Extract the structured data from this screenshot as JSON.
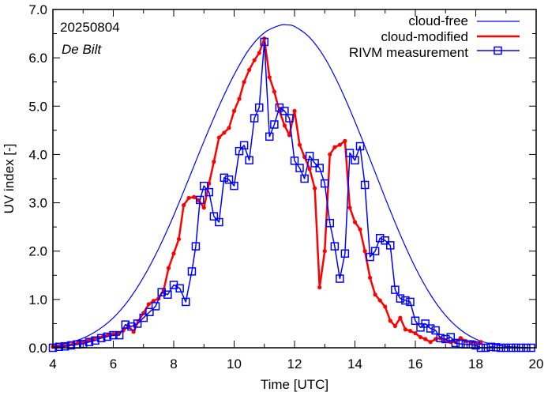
{
  "chart_data": {
    "type": "line",
    "annotations": {
      "date": "20250804",
      "station": "De Bilt"
    },
    "xlabel": "Time  [UTC]",
    "ylabel": "UV index  [-]",
    "xlim": [
      4,
      20
    ],
    "ylim": [
      0,
      7
    ],
    "x_ticks": [
      4,
      6,
      8,
      10,
      12,
      14,
      16,
      18,
      20
    ],
    "x_tick_labels": [
      "4",
      "6",
      "8",
      "10",
      "12",
      "14",
      "16",
      "18",
      "20"
    ],
    "y_ticks": [
      0,
      1,
      2,
      3,
      4,
      5,
      6,
      7
    ],
    "y_tick_labels": [
      "0.0",
      "1.0",
      "2.0",
      "3.0",
      "4.0",
      "5.0",
      "6.0",
      "7.0"
    ],
    "grid": false,
    "legend_position": "top-right",
    "colors": {
      "blue": "#0000ff",
      "red": "#ff0000"
    },
    "series": [
      {
        "name": "cloud-free",
        "style": "line",
        "color": "#0000ff",
        "peak_time": 11.75,
        "peak_value": 6.68,
        "x": [
          4.0,
          4.5,
          5.0,
          5.5,
          6.0,
          6.5,
          7.0,
          7.5,
          8.0,
          8.5,
          9.0,
          9.5,
          10.0,
          10.5,
          11.0,
          11.5,
          11.75,
          12.0,
          12.5,
          13.0,
          13.5,
          14.0,
          14.5,
          15.0,
          15.5,
          16.0,
          16.5,
          17.0,
          17.5,
          18.0,
          18.5,
          19.0,
          19.5,
          19.8
        ],
        "values": [
          0.04,
          0.1,
          0.2,
          0.37,
          0.62,
          0.98,
          1.46,
          2.05,
          2.74,
          3.5,
          4.27,
          5.0,
          5.65,
          6.18,
          6.52,
          6.67,
          6.68,
          6.65,
          6.42,
          6.0,
          5.4,
          4.68,
          3.9,
          3.1,
          2.34,
          1.66,
          1.1,
          0.67,
          0.37,
          0.18,
          0.08,
          0.03,
          0.01,
          0.0
        ]
      },
      {
        "name": "cloud-modified",
        "style": "line-dot",
        "color": "#ff0000",
        "x": [
          4.0,
          4.17,
          4.33,
          4.5,
          4.67,
          4.83,
          5.0,
          5.17,
          5.33,
          5.5,
          5.67,
          5.83,
          6.0,
          6.17,
          6.33,
          6.5,
          6.67,
          6.83,
          7.0,
          7.17,
          7.33,
          7.5,
          7.67,
          7.83,
          8.0,
          8.17,
          8.33,
          8.5,
          8.67,
          8.83,
          9.0,
          9.17,
          9.33,
          9.5,
          9.67,
          9.83,
          10.0,
          10.17,
          10.33,
          10.5,
          10.67,
          10.83,
          11.0,
          11.17,
          11.33,
          11.5,
          11.67,
          11.83,
          12.0,
          12.17,
          12.33,
          12.5,
          12.67,
          12.83,
          13.0,
          13.17,
          13.33,
          13.5,
          13.67,
          13.83,
          14.0,
          14.17,
          14.33,
          14.5,
          14.67,
          14.83,
          15.0,
          15.17,
          15.33,
          15.5,
          15.67,
          15.83,
          16.0,
          16.17,
          16.33,
          16.5,
          16.67,
          16.83,
          17.0,
          17.17,
          17.33,
          17.5,
          17.67,
          17.83,
          18.0,
          18.17
        ],
        "values": [
          0.02,
          0.03,
          0.04,
          0.06,
          0.08,
          0.1,
          0.12,
          0.15,
          0.18,
          0.21,
          0.24,
          0.27,
          0.28,
          0.3,
          0.36,
          0.45,
          0.33,
          0.55,
          0.72,
          0.9,
          0.97,
          1.02,
          1.2,
          1.65,
          1.95,
          2.25,
          2.95,
          3.1,
          3.12,
          3.05,
          2.9,
          3.4,
          3.85,
          4.35,
          4.45,
          4.55,
          4.9,
          5.15,
          5.5,
          5.75,
          5.95,
          6.1,
          6.4,
          5.6,
          5.3,
          4.9,
          4.6,
          4.4,
          4.9,
          4.2,
          3.95,
          3.7,
          3.3,
          1.25,
          2.0,
          4.0,
          4.15,
          4.2,
          4.28,
          2.9,
          2.6,
          2.45,
          2.0,
          1.45,
          1.1,
          0.98,
          0.85,
          0.56,
          0.45,
          0.62,
          0.38,
          0.35,
          0.3,
          0.22,
          0.18,
          0.12,
          0.18,
          0.2,
          0.15,
          0.12,
          0.12,
          0.2,
          0.14,
          0.12,
          0.1,
          0.12
        ]
      },
      {
        "name": "RIVM measurement",
        "style": "line-square",
        "color": "#0000ff",
        "x": [
          4.0,
          4.2,
          4.4,
          4.6,
          4.8,
          5.0,
          5.2,
          5.4,
          5.6,
          5.8,
          6.0,
          6.2,
          6.4,
          6.6,
          6.8,
          7.0,
          7.2,
          7.4,
          7.6,
          7.8,
          8.0,
          8.2,
          8.4,
          8.6,
          8.73,
          8.87,
          9.0,
          9.17,
          9.33,
          9.5,
          9.67,
          9.83,
          10.0,
          10.17,
          10.33,
          10.5,
          10.67,
          10.83,
          11.0,
          11.17,
          11.33,
          11.5,
          11.67,
          11.83,
          12.0,
          12.17,
          12.33,
          12.5,
          12.67,
          12.83,
          13.0,
          13.17,
          13.33,
          13.5,
          13.67,
          13.83,
          14.0,
          14.17,
          14.33,
          14.5,
          14.67,
          14.83,
          15.0,
          15.17,
          15.33,
          15.5,
          15.67,
          15.83,
          16.0,
          16.17,
          16.33,
          16.5,
          16.67,
          16.83,
          17.0,
          17.17,
          17.33,
          17.5,
          17.67,
          17.83,
          18.0,
          18.17,
          18.33,
          18.5,
          18.67,
          18.83,
          19.0,
          19.17,
          19.33,
          19.5,
          19.67,
          19.83
        ],
        "values": [
          0.0,
          0.02,
          0.03,
          0.05,
          0.07,
          0.08,
          0.12,
          0.15,
          0.2,
          0.23,
          0.26,
          0.26,
          0.48,
          0.44,
          0.5,
          0.62,
          0.74,
          0.86,
          1.15,
          1.1,
          1.3,
          1.23,
          0.95,
          1.58,
          2.1,
          3.06,
          3.35,
          3.22,
          2.72,
          2.6,
          3.52,
          3.48,
          3.35,
          4.07,
          4.19,
          3.88,
          4.75,
          4.97,
          6.33,
          4.37,
          4.62,
          4.97,
          4.9,
          4.75,
          3.87,
          3.72,
          3.5,
          3.97,
          3.82,
          3.72,
          3.4,
          2.58,
          2.1,
          1.43,
          1.95,
          4.03,
          3.88,
          4.17,
          3.37,
          1.88,
          2.0,
          2.27,
          2.22,
          2.12,
          1.2,
          1.02,
          0.98,
          0.95,
          0.56,
          0.42,
          0.5,
          0.4,
          0.36,
          0.2,
          0.18,
          0.22,
          0.1,
          0.08,
          0.07,
          0.07,
          0.05,
          0.0,
          0.0,
          0.02,
          0.01,
          0.0,
          0.0,
          0.0,
          0.0,
          0.0,
          0.0,
          0.0
        ]
      }
    ]
  }
}
